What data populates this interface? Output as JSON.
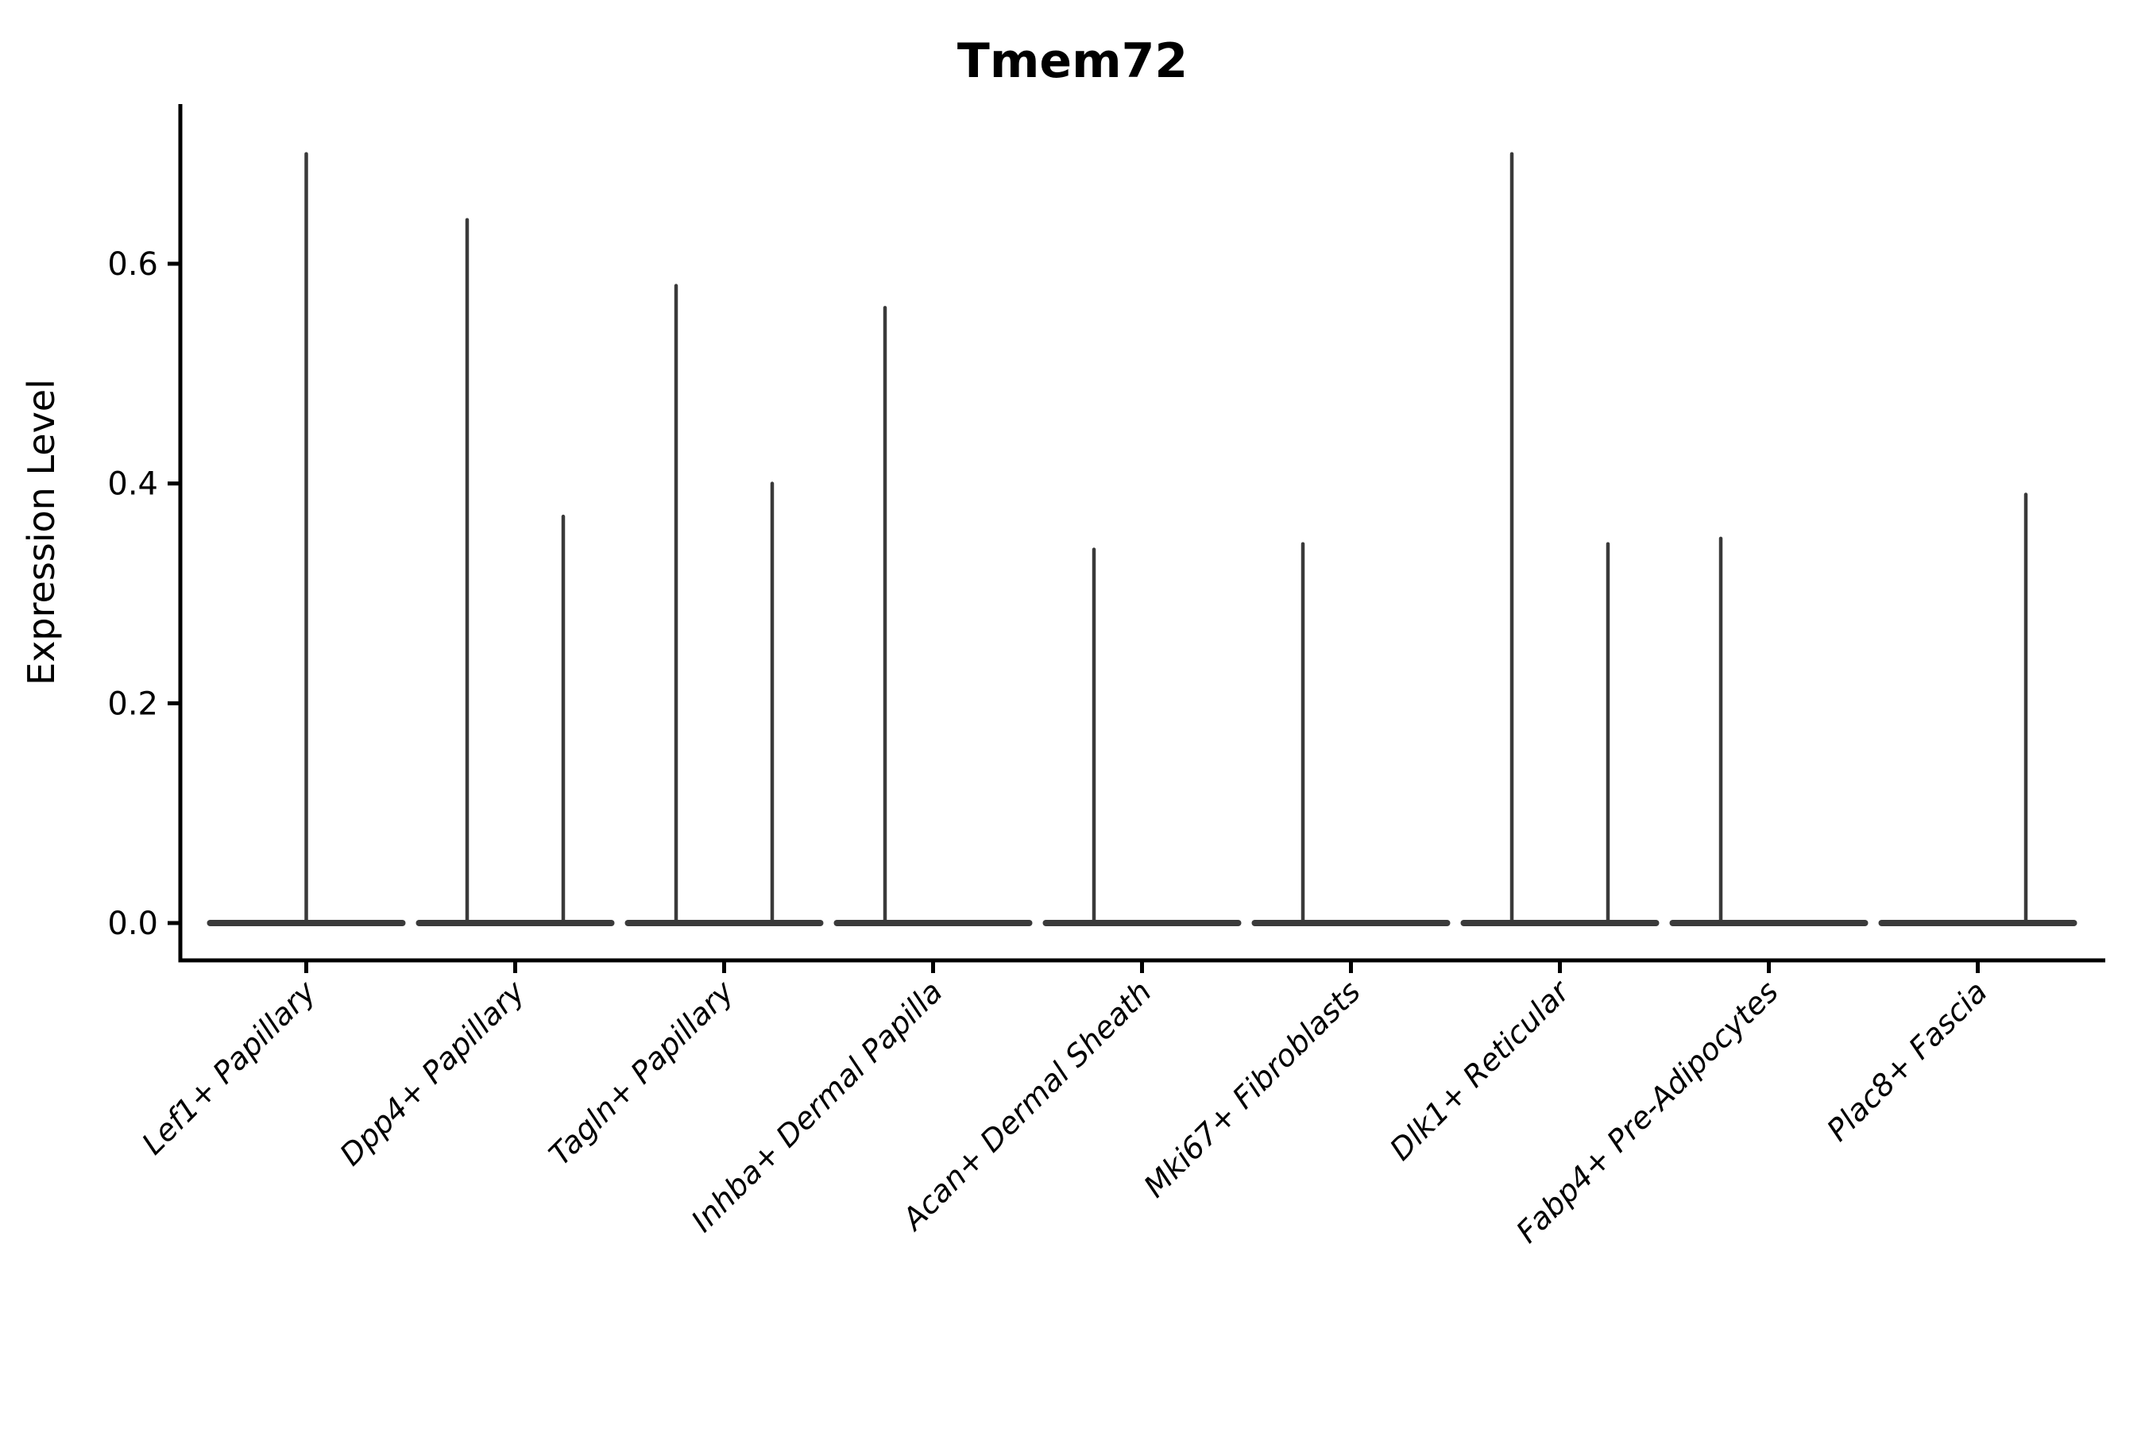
{
  "title": "Tmem72",
  "axes": {
    "ylabel": "Expression Level",
    "xlabel": ""
  },
  "chart_data": {
    "type": "violin",
    "title": "Tmem72",
    "ylabel": "Expression Level",
    "ylim": [
      0,
      0.75
    ],
    "yticks": [
      0.0,
      0.2,
      0.4,
      0.6
    ],
    "ytick_labels": [
      "0.0",
      "0.2",
      "0.4",
      "0.6"
    ],
    "grid": false,
    "legend": "none",
    "categories": [
      "Lef1+ Papillary",
      "Dpp4+ Papillary",
      "Tagln+ Papillary",
      "Inhba+ Dermal Papilla",
      "Acan+ Dermal Sheath",
      "Mki67+ Fibroblasts",
      "Dlk1+ Reticular",
      "Fabp4+ Pre-Adipocytes",
      "Plac8+ Fascia"
    ],
    "violins": [
      {
        "category": "Lef1+ Papillary",
        "base_value": 0.0,
        "spikes": [
          {
            "offset": 0.0,
            "max": 0.7
          }
        ]
      },
      {
        "category": "Dpp4+ Papillary",
        "base_value": 0.0,
        "spikes": [
          {
            "offset": -0.23,
            "max": 0.64
          },
          {
            "offset": 0.23,
            "max": 0.37
          }
        ]
      },
      {
        "category": "Tagln+ Papillary",
        "base_value": 0.0,
        "spikes": [
          {
            "offset": -0.23,
            "max": 0.58
          },
          {
            "offset": 0.23,
            "max": 0.4
          }
        ]
      },
      {
        "category": "Inhba+ Dermal Papilla",
        "base_value": 0.0,
        "spikes": [
          {
            "offset": -0.23,
            "max": 0.56
          }
        ]
      },
      {
        "category": "Acan+ Dermal Sheath",
        "base_value": 0.0,
        "spikes": [
          {
            "offset": -0.23,
            "max": 0.34
          }
        ]
      },
      {
        "category": "Mki67+ Fibroblasts",
        "base_value": 0.0,
        "spikes": [
          {
            "offset": -0.23,
            "max": 0.345
          }
        ]
      },
      {
        "category": "Dlk1+ Reticular",
        "base_value": 0.0,
        "spikes": [
          {
            "offset": -0.23,
            "max": 0.7
          },
          {
            "offset": 0.23,
            "max": 0.345
          }
        ]
      },
      {
        "category": "Fabp4+ Pre-Adipocytes",
        "base_value": 0.0,
        "spikes": [
          {
            "offset": -0.23,
            "max": 0.35
          }
        ]
      },
      {
        "category": "Plac8+ Fascia",
        "base_value": 0.0,
        "spikes": [
          {
            "offset": 0.23,
            "max": 0.39
          }
        ]
      }
    ],
    "colors": {
      "violin_line": "#3a3a3a",
      "axis": "#000000"
    }
  }
}
